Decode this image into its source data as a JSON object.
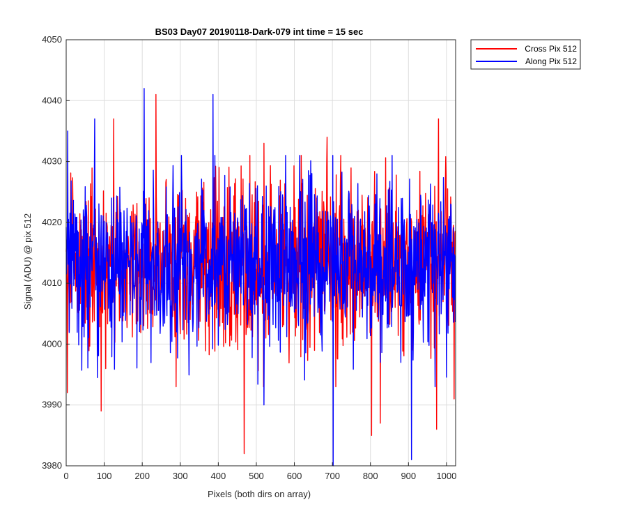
{
  "chart_data": {
    "type": "line",
    "title": "BS03 Day07 20190118-Dark-079 int time = 15 sec",
    "xlabel": "Pixels (both dirs on array)",
    "ylabel": "Signal (ADU) @ pix 512",
    "xlim": [
      0,
      1024
    ],
    "ylim": [
      3980,
      4050
    ],
    "xticks": [
      0,
      100,
      200,
      300,
      400,
      500,
      600,
      700,
      800,
      900,
      1000
    ],
    "yticks": [
      3980,
      3990,
      4000,
      4010,
      4020,
      4030,
      4040,
      4050
    ],
    "grid": true,
    "legend_position": "outside-top-right",
    "n_points": 1024,
    "series_summary": {
      "mean": 4013,
      "noise_std": 7
    },
    "series": [
      {
        "name": "Cross Pix 512",
        "color": "#ff0000",
        "seed": 17,
        "notable_points": [
          {
            "x": 3,
            "y": 3992
          },
          {
            "x": 92,
            "y": 3989
          },
          {
            "x": 125,
            "y": 4037
          },
          {
            "x": 236,
            "y": 4041
          },
          {
            "x": 468,
            "y": 3982
          },
          {
            "x": 483,
            "y": 4031
          },
          {
            "x": 520,
            "y": 4033
          },
          {
            "x": 686,
            "y": 4034
          },
          {
            "x": 803,
            "y": 3985
          },
          {
            "x": 826,
            "y": 3987
          },
          {
            "x": 974,
            "y": 3986
          },
          {
            "x": 979,
            "y": 4037
          },
          {
            "x": 1020,
            "y": 3991
          }
        ]
      },
      {
        "name": "Along Pix 512",
        "color": "#0000ff",
        "seed": 91,
        "notable_points": [
          {
            "x": 4,
            "y": 4035
          },
          {
            "x": 75,
            "y": 4037
          },
          {
            "x": 205,
            "y": 4042
          },
          {
            "x": 386,
            "y": 4041
          },
          {
            "x": 520,
            "y": 3990
          },
          {
            "x": 702,
            "y": 3980
          },
          {
            "x": 908,
            "y": 3981
          }
        ]
      }
    ]
  }
}
